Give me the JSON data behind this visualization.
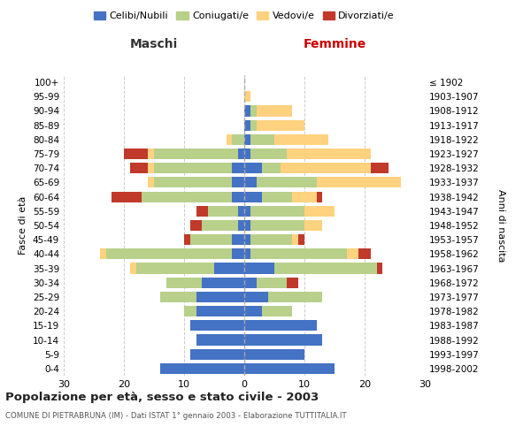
{
  "age_groups": [
    "0-4",
    "5-9",
    "10-14",
    "15-19",
    "20-24",
    "25-29",
    "30-34",
    "35-39",
    "40-44",
    "45-49",
    "50-54",
    "55-59",
    "60-64",
    "65-69",
    "70-74",
    "75-79",
    "80-84",
    "85-89",
    "90-94",
    "95-99",
    "100+"
  ],
  "birth_years": [
    "1998-2002",
    "1993-1997",
    "1988-1992",
    "1983-1987",
    "1978-1982",
    "1973-1977",
    "1968-1972",
    "1963-1967",
    "1958-1962",
    "1953-1957",
    "1948-1952",
    "1943-1947",
    "1938-1942",
    "1933-1937",
    "1928-1932",
    "1923-1927",
    "1918-1922",
    "1913-1917",
    "1908-1912",
    "1903-1907",
    "≤ 1902"
  ],
  "maschi": {
    "celibi": [
      14,
      9,
      8,
      9,
      8,
      8,
      7,
      5,
      2,
      2,
      1,
      1,
      2,
      2,
      2,
      1,
      0,
      0,
      0,
      0,
      0
    ],
    "coniugati": [
      0,
      0,
      0,
      0,
      2,
      6,
      6,
      13,
      21,
      7,
      6,
      5,
      15,
      13,
      13,
      14,
      2,
      0,
      0,
      0,
      0
    ],
    "vedovi": [
      0,
      0,
      0,
      0,
      0,
      0,
      0,
      1,
      1,
      0,
      0,
      0,
      0,
      1,
      1,
      1,
      1,
      0,
      0,
      0,
      0
    ],
    "divorziati": [
      0,
      0,
      0,
      0,
      0,
      0,
      0,
      0,
      0,
      1,
      2,
      2,
      5,
      0,
      3,
      4,
      0,
      0,
      0,
      0,
      0
    ]
  },
  "femmine": {
    "nubili": [
      15,
      10,
      13,
      12,
      3,
      4,
      2,
      5,
      1,
      1,
      1,
      1,
      3,
      2,
      3,
      1,
      1,
      1,
      1,
      0,
      0
    ],
    "coniugate": [
      0,
      0,
      0,
      0,
      5,
      9,
      5,
      17,
      16,
      7,
      9,
      9,
      5,
      10,
      3,
      6,
      4,
      1,
      1,
      0,
      0
    ],
    "vedove": [
      0,
      0,
      0,
      0,
      0,
      0,
      0,
      0,
      2,
      1,
      3,
      5,
      4,
      14,
      15,
      14,
      9,
      8,
      6,
      1,
      0
    ],
    "divorziate": [
      0,
      0,
      0,
      0,
      0,
      0,
      2,
      1,
      2,
      1,
      0,
      0,
      1,
      0,
      3,
      0,
      0,
      0,
      0,
      0,
      0
    ]
  },
  "colors": {
    "celibi_nubili": "#4472C4",
    "coniugati": "#B8D08A",
    "vedovi": "#FFD280",
    "divorziati": "#C0392B"
  },
  "xlim": 30,
  "title": "Popolazione per età, sesso e stato civile - 2003",
  "subtitle": "COMUNE DI PIETRABRUNA (IM) - Dati ISTAT 1° gennaio 2003 - Elaborazione TUTTITALIA.IT",
  "xlabel_left": "Maschi",
  "xlabel_right": "Femmine",
  "ylabel_left": "Fasce di età",
  "ylabel_right": "Anni di nascita",
  "legend_labels": [
    "Celibi/Nubili",
    "Coniugati/e",
    "Vedovi/e",
    "Divorziati/e"
  ],
  "background_color": "#ffffff",
  "grid_color": "#cccccc"
}
